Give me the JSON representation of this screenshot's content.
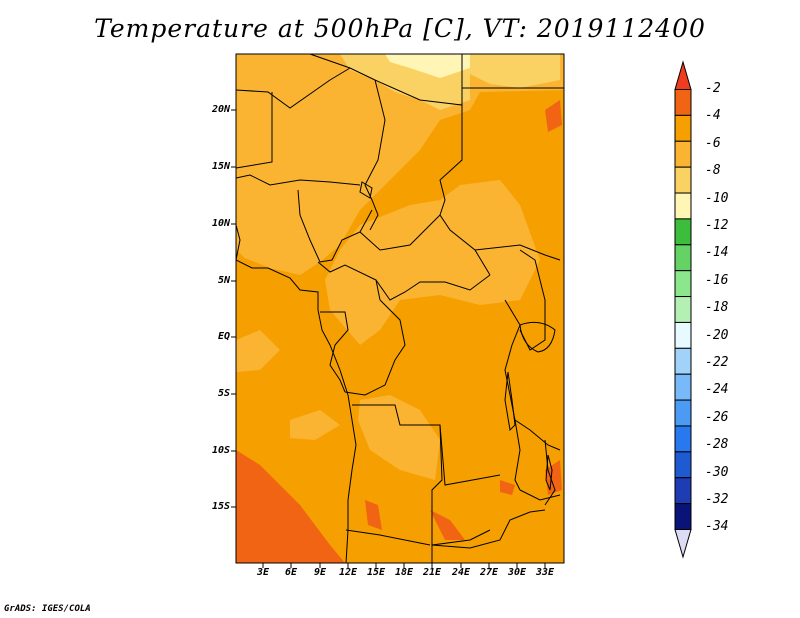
{
  "title": "Temperature at 500hPa [C], VT: 2019112400",
  "credit": "GrADS: IGES/COLA",
  "map": {
    "lat_labels": [
      "20N",
      "15N",
      "10N",
      "5N",
      "EQ",
      "5S",
      "10S",
      "15S"
    ],
    "lon_labels": [
      "3E",
      "6E",
      "9E",
      "12E",
      "15E",
      "18E",
      "21E",
      "24E",
      "27E",
      "30E",
      "33E"
    ]
  },
  "colorbar": {
    "labels": [
      "-2",
      "-4",
      "-6",
      "-8",
      "-10",
      "-12",
      "-14",
      "-16",
      "-18",
      "-20",
      "-22",
      "-24",
      "-26",
      "-28",
      "-30",
      "-32",
      "-34"
    ],
    "colors": [
      "#f03c1e",
      "#f06414",
      "#f5a000",
      "#fab432",
      "#fad264",
      "#fff5b4",
      "#3cbe3c",
      "#64d264",
      "#8ce68c",
      "#b4f0b4",
      "#e6faff",
      "#a0d2fa",
      "#78b9fa",
      "#4b9bf5",
      "#2878ef",
      "#1e5ad2",
      "#1e3cb4",
      "#0a1478",
      "#dcdcf5"
    ]
  }
}
